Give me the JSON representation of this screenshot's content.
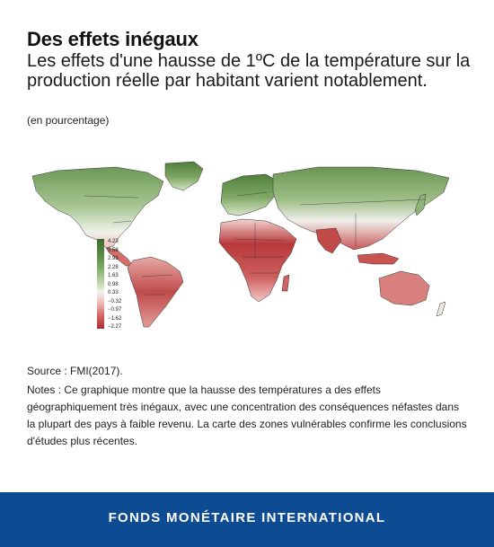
{
  "title": "Des effets inégaux",
  "subtitle": "Les effets d'une hausse de 1ºC de la température sur la production réelle par habitant varient notablement.",
  "unit_note": "(en pourcentage)",
  "legend": {
    "values": [
      "4.23",
      "3.58",
      "2.93",
      "2.28",
      "1.63",
      "0.98",
      "0.33",
      "−0.32",
      "−0.97",
      "−1.62",
      "−2.27"
    ],
    "colors": {
      "high": "#3e6b2e",
      "neutral": "#f2f2ee",
      "low": "#b12a2e"
    }
  },
  "source": "Source : FMI(2017).",
  "notes": "Notes : Ce graphique montre que la hausse des températures a des effets géographiquement très inégaux, avec une concentration des conséquences néfastes dans la plupart des pays à faible revenu. La carte des zones vulnérables confirme les conclusions d'études plus récentes.",
  "footer": "FONDS MONÉTAIRE INTERNATIONAL"
}
